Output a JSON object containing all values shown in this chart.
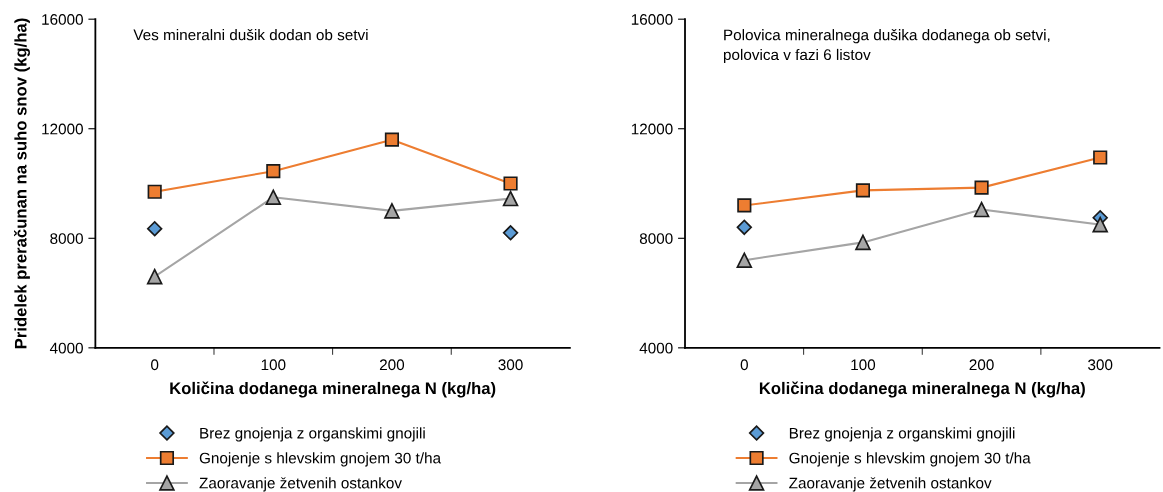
{
  "chart_data": [
    {
      "type": "line",
      "title": "Ves mineralni dušik dodan ob setvi",
      "xlabel": "Količina dodanega mineralnega N (kg/ha)",
      "ylabel": "Pridelek preračunan na suho snov (kg/ha)",
      "categories": [
        "0",
        "100",
        "200",
        "300"
      ],
      "ylim": [
        4000,
        16000
      ],
      "yticks": [
        4000,
        8000,
        12000,
        16000
      ],
      "grid": false,
      "legend": "bottom",
      "series": [
        {
          "name": "Brez gnojenja z organskimi gnojili",
          "type": "scatter",
          "color": "#5b9bd5",
          "marker": "diamond",
          "values": [
            8350,
            null,
            null,
            8200
          ]
        },
        {
          "name": "Gnojenje s hlevskim gnojem 30 t/ha",
          "color": "#ed7d31",
          "marker": "square",
          "values": [
            9700,
            10450,
            11600,
            10000
          ]
        },
        {
          "name": "Zaoravanje žetvenih ostankov",
          "color": "#a5a5a5",
          "marker": "triangle",
          "values": [
            6600,
            9500,
            9000,
            9450
          ]
        }
      ]
    },
    {
      "type": "line",
      "title": "Polovica mineralnega dušika dodanega ob setvi,\npolovica v fazi 6 listov",
      "xlabel": "Količina dodanega mineralnega N (kg/ha)",
      "categories": [
        "0",
        "100",
        "200",
        "300"
      ],
      "ylim": [
        4000,
        16000
      ],
      "yticks": [
        4000,
        8000,
        12000,
        16000
      ],
      "grid": false,
      "legend": "bottom",
      "series": [
        {
          "name": "Brez gnojenja z organskimi gnojili",
          "type": "scatter",
          "color": "#5b9bd5",
          "marker": "diamond",
          "values": [
            8400,
            null,
            null,
            8750
          ]
        },
        {
          "name": "Gnojenje s hlevskim gnojem 30 t/ha",
          "color": "#ed7d31",
          "marker": "square",
          "values": [
            9200,
            9750,
            9850,
            10950
          ]
        },
        {
          "name": "Zaoravanje žetvenih ostankov",
          "color": "#a5a5a5",
          "marker": "triangle",
          "values": [
            7200,
            7850,
            9050,
            8500
          ]
        }
      ]
    }
  ]
}
